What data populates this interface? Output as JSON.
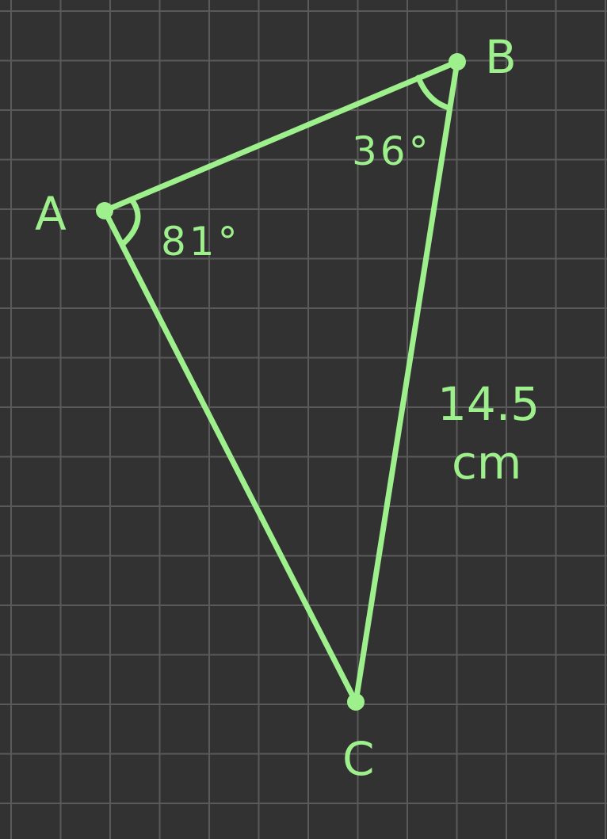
{
  "colors": {
    "background": "#323232",
    "grid": "#5a5a5a",
    "stroke": "#9ef08c"
  },
  "diagram": {
    "vertices": {
      "A": {
        "label": "A"
      },
      "B": {
        "label": "B"
      },
      "C": {
        "label": "C"
      }
    },
    "angles": {
      "A": {
        "label": "81°"
      },
      "B": {
        "label": "36°"
      }
    },
    "sides": {
      "BC": {
        "value": "14.5",
        "unit": "cm"
      }
    }
  }
}
